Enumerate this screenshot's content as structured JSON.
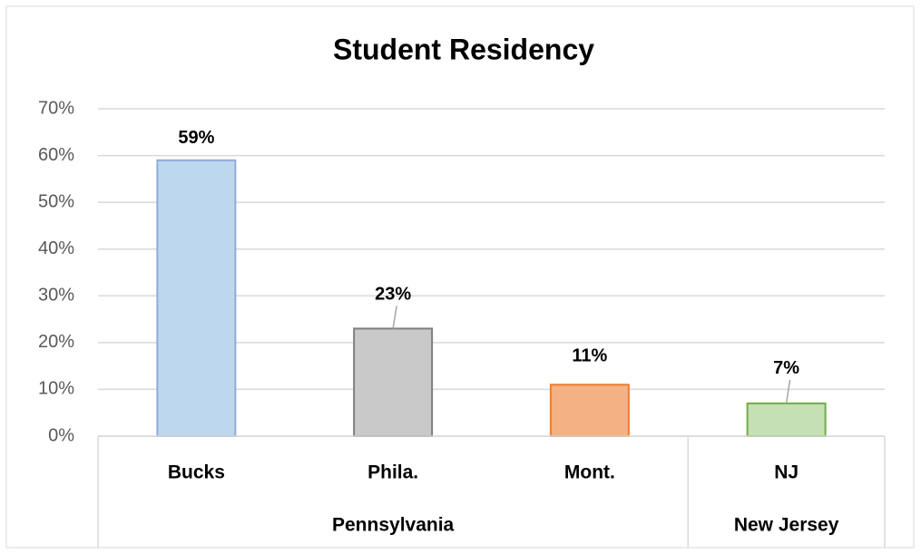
{
  "chart_data": {
    "type": "bar",
    "title": "Student Residency",
    "categories": [
      "Bucks",
      "Phila.",
      "Mont.",
      "NJ"
    ],
    "groups": [
      {
        "label": "Pennsylvania",
        "count": 3
      },
      {
        "label": "New Jersey",
        "count": 1
      }
    ],
    "values": [
      59,
      23,
      11,
      7
    ],
    "value_labels": [
      "59%",
      "23%",
      "11%",
      "7%"
    ],
    "colors": [
      "#bdd7ee",
      "#c9c9c9",
      "#f4b183",
      "#c5e0b4"
    ],
    "edge_colors": [
      "#8faadc",
      "#7f7f7f",
      "#ed7d31",
      "#70ad47"
    ],
    "ylim": [
      0,
      70
    ],
    "yticks": [
      {
        "value": 0,
        "label": "0%"
      },
      {
        "value": 10,
        "label": "10%"
      },
      {
        "value": 20,
        "label": "20%"
      },
      {
        "value": 30,
        "label": "30%"
      },
      {
        "value": 40,
        "label": "40%"
      },
      {
        "value": 50,
        "label": "50%"
      },
      {
        "value": 60,
        "label": "60%"
      },
      {
        "value": 70,
        "label": "70%"
      }
    ],
    "grid": true
  }
}
